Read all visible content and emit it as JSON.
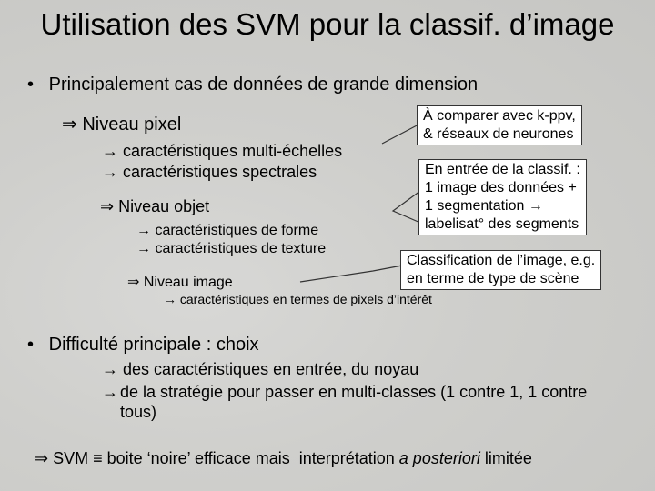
{
  "title": "Utilisation des SVM pour la classif. d’image",
  "section1": {
    "bullet": "Principalement cas de données de grande dimension",
    "levels": [
      {
        "label": "Niveau pixel",
        "features": [
          "caractéristiques multi-échelles",
          "caractéristiques spectrales"
        ]
      },
      {
        "label": "Niveau objet",
        "features": [
          "caractéristiques de forme",
          "caractéristiques de texture"
        ]
      },
      {
        "label": "Niveau image",
        "features": [
          "caractéristiques en termes de pixels d’intérêt"
        ]
      }
    ]
  },
  "callouts": [
    {
      "lines": [
        "À comparer avec k-ppv,",
        "& réseaux de neurones"
      ]
    },
    {
      "lines": [
        "En entrée de la classif. :",
        "1 image des données +",
        "1 segmentation →",
        "labelisat° des segments"
      ]
    },
    {
      "lines": [
        "Classification de l’image, e.g.",
        "en terme de type de scène"
      ]
    }
  ],
  "section2": {
    "bullet": "Difficulté principale : choix",
    "items": [
      "des caractéristiques en entrée, du noyau",
      "de la stratégie pour passer en multi-classes (1 contre 1, 1 contre tous)"
    ]
  },
  "conclusion": {
    "text": "SVM ≡ boite ‘noire’ efficace mais  interprétation",
    "emphasis": "a posteriori",
    "tail": "limitée"
  }
}
